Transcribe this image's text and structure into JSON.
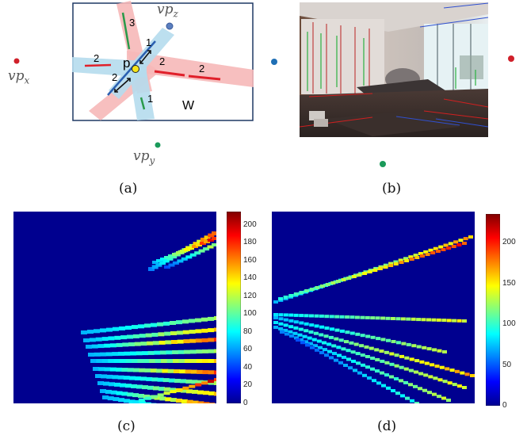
{
  "panel_a": {
    "label_p": "p",
    "label_w": "W",
    "segment_numbers": [
      "1",
      "1",
      "2",
      "2",
      "2",
      "2",
      "3"
    ],
    "vp_x": {
      "base": "vp",
      "sub": "x"
    },
    "vp_y": {
      "base": "vp",
      "sub": "y"
    },
    "vp_z": {
      "base": "vp",
      "sub": "z"
    },
    "caption": "(a)"
  },
  "panel_b": {
    "caption": "(b)"
  },
  "panel_c": {
    "caption": "(c)"
  },
  "panel_d": {
    "caption": "(d)"
  },
  "colors": {
    "red_dot": "#d0202a",
    "blue_dot": "#1f6fb5",
    "green_dot": "#1a9a5a",
    "heatmap_bg": "#00008f"
  },
  "chart_data": [
    {
      "type": "heatmap",
      "title": "",
      "colorbar": {
        "min": 0,
        "max": 215,
        "ticks": [
          0,
          20,
          40,
          60,
          80,
          100,
          120,
          140,
          160,
          180,
          200
        ]
      },
      "grid": false,
      "axes_visible": false
    },
    {
      "type": "heatmap",
      "title": "",
      "colorbar": {
        "min": 0,
        "max": 235,
        "ticks": [
          0,
          50,
          100,
          150,
          200
        ]
      },
      "grid": false,
      "axes_visible": false
    }
  ]
}
